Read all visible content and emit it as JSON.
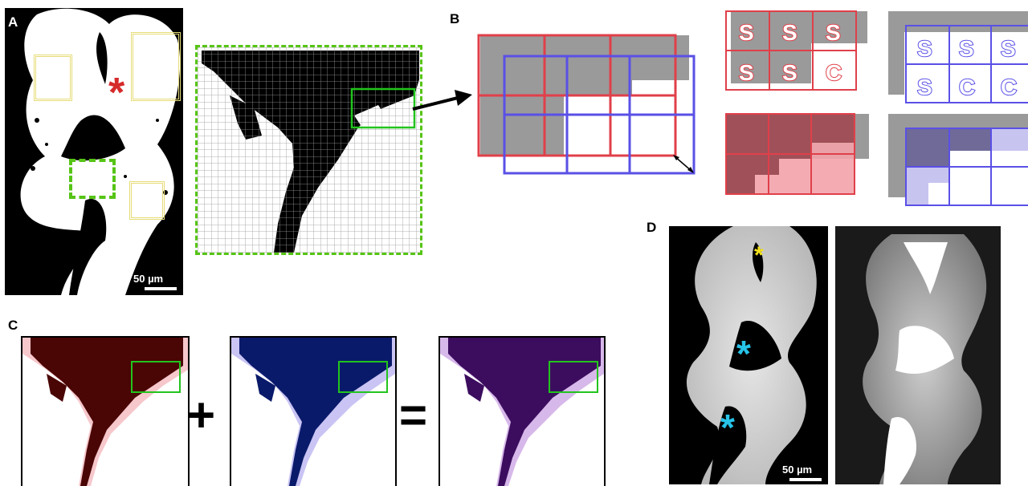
{
  "panels": {
    "a": "A",
    "b": "B",
    "c": "C",
    "d": "D"
  },
  "panel_a": {
    "scale_label": "50 µm",
    "marker": "*"
  },
  "panel_b": {
    "top_red_letters": [
      "S",
      "S",
      "S",
      "S",
      "S",
      "C"
    ],
    "top_blue_letters": [
      "S",
      "S",
      "S",
      "S",
      "C",
      "C"
    ]
  },
  "panel_c": {
    "plus": "+",
    "equals": "="
  },
  "panel_d": {
    "scale_label": "50 µm",
    "markers": [
      "*",
      "*",
      "*"
    ]
  },
  "colors": {
    "red": "#e0404a",
    "red_light": "#f3a3aa",
    "blue": "#5a50e6",
    "blue_light": "#a39cf0",
    "green": "#22c41d",
    "green_dashed": "#56c415",
    "gold": "#e6dc78",
    "dark_red": "#4a0505",
    "dark_blue": "#0a1a6a",
    "purple": "#3c0d5e",
    "asterisk_red": "#d62b2b",
    "asterisk_yellow": "#f3e21c",
    "asterisk_cyan": "#27c3e8"
  }
}
